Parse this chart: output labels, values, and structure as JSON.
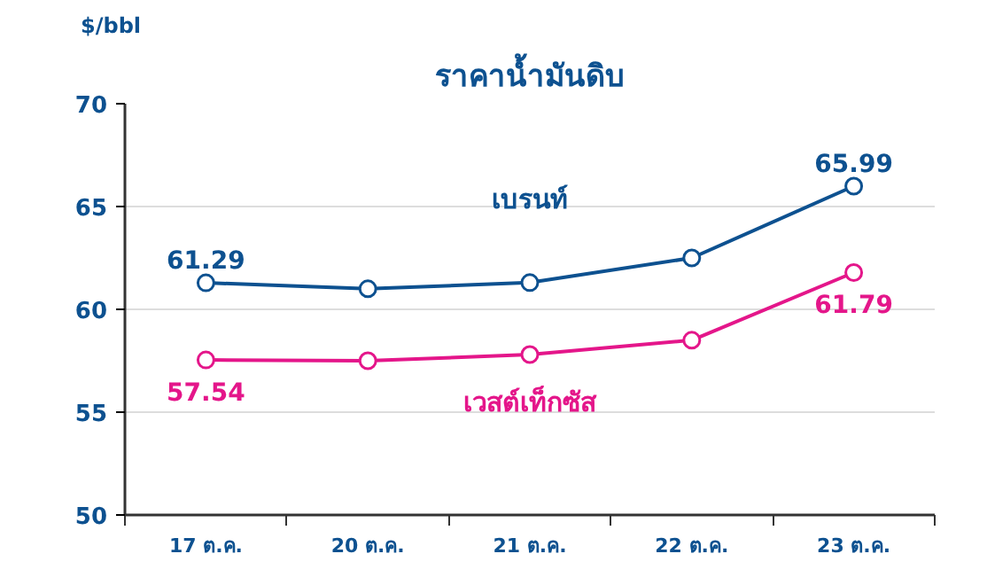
{
  "chart_data": {
    "type": "line",
    "title": "ราคาน้ำมันดิบ",
    "ylabel": "$/bbl",
    "categories": [
      "17 ต.ค.",
      "20 ต.ค.",
      "21 ต.ค.",
      "22 ต.ค.",
      "23 ต.ค."
    ],
    "ylim": [
      50,
      70
    ],
    "yticks": [
      50,
      55,
      60,
      65,
      70
    ],
    "grid": "y",
    "marker": "circle",
    "line_style": "solid",
    "series": [
      {
        "name": "เบรนท์",
        "color": "#0d5190",
        "values": [
          61.29,
          61.0,
          61.3,
          62.5,
          65.99
        ],
        "value_labels": [
          "61.29",
          null,
          null,
          null,
          "65.99"
        ]
      },
      {
        "name": "เวสต์เท็กซัส",
        "color": "#e4168a",
        "values": [
          57.54,
          57.5,
          57.8,
          58.5,
          61.79
        ],
        "value_labels": [
          "57.54",
          null,
          null,
          null,
          "61.79"
        ]
      }
    ]
  }
}
